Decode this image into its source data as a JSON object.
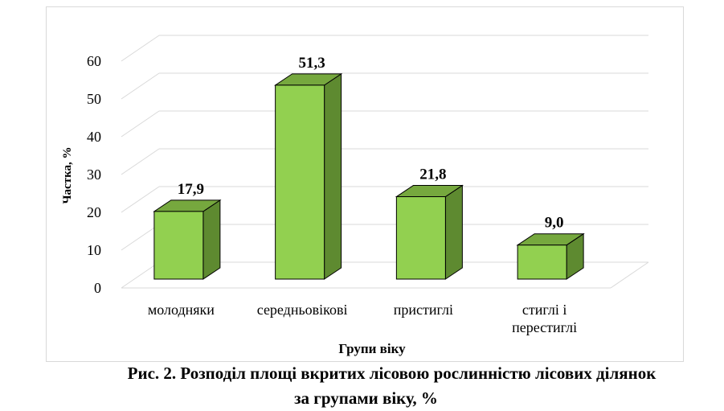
{
  "chart_data": {
    "type": "bar",
    "style": "3d-column",
    "categories": [
      "молодняки",
      "середньовікові",
      "пристиглі",
      "стиглі і перестиглі"
    ],
    "category_lines": [
      [
        "молодняки"
      ],
      [
        "середньовікові"
      ],
      [
        "пристиглі"
      ],
      [
        "стиглі і",
        "перестиглі"
      ]
    ],
    "values": [
      17.9,
      51.3,
      21.8,
      9.0
    ],
    "data_labels": [
      "17,9",
      "51,3",
      "21,8",
      "9,0"
    ],
    "xlabel": "Групи віку",
    "ylabel": "Частка, %",
    "ylim": [
      0,
      60
    ],
    "yticks": [
      0,
      10,
      20,
      30,
      40,
      50,
      60
    ],
    "grid": true,
    "legend": "none",
    "colors": {
      "front": "#92d050",
      "side": "#5e8a30",
      "top": "#76a83e",
      "grid": "#d9d9d9",
      "outline": "#000000"
    }
  },
  "caption": {
    "line1": "Рис. 2. Розподіл площі вкритих лісовою рослинністю лісових ділянок",
    "line2": "за групами віку, %"
  }
}
